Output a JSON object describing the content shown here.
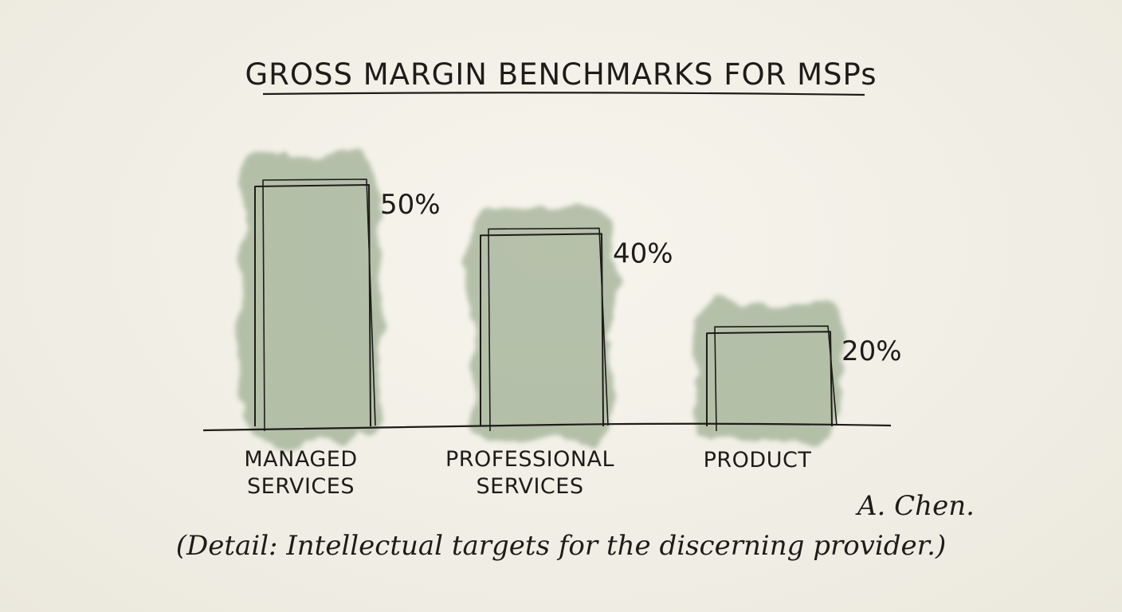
{
  "chart_data": {
    "type": "bar",
    "title": "GROSS MARGIN BENCHMARKS FOR MSPs",
    "categories": [
      [
        "MANAGED",
        "SERVICES"
      ],
      [
        "PROFESSIONAL",
        "SERVICES"
      ],
      [
        "PRODUCT"
      ]
    ],
    "values": [
      50,
      40,
      20
    ],
    "value_labels": [
      "50%",
      "40%",
      "20%"
    ],
    "ylim": [
      0,
      50
    ],
    "grid": false,
    "legend": "none",
    "bar_wash_color": "#8fa283",
    "ink_color": "#1e1c19"
  },
  "signature": "A. Chen.",
  "caption": "(Detail: Intellectual targets for the discerning provider.)"
}
